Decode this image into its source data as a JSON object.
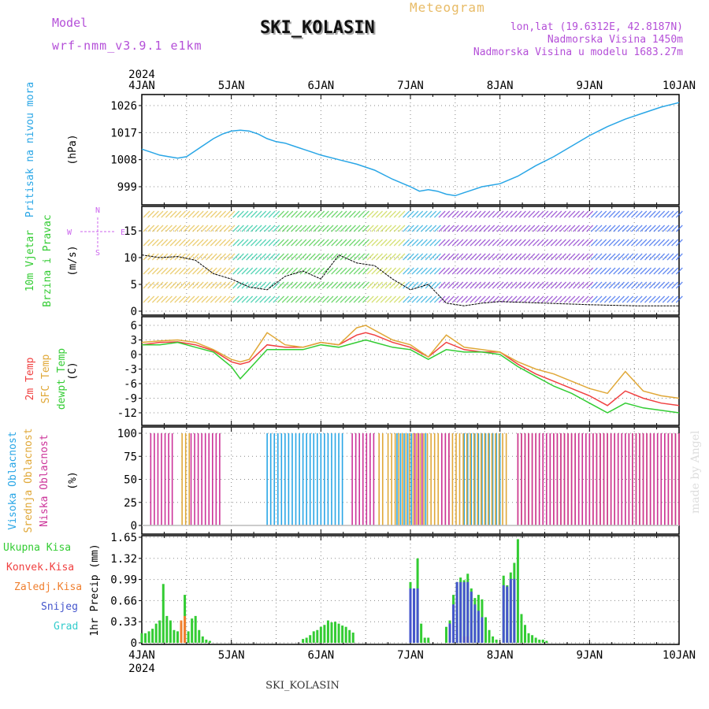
{
  "header": {
    "model_label": "Model",
    "model_value": "wrf-nmm_v3.9.1 e1km",
    "title": "SKI_KOLASIN",
    "meteogram": "Meteogram",
    "lonlat": "lon,lat (19.6312E, 42.8187N)",
    "elev": "Nadmorska Visina 1450m",
    "elev_model": "Nadmorska Visina u modelu 1683.27m",
    "bottom_title": "SKI_KOLASIN",
    "credit": "made by Angel"
  },
  "colors": {
    "pressure": "#29a6e6",
    "t2m": "#f04040",
    "sfc": "#e0a838",
    "dew": "#33cc33",
    "high": "#29a6e6",
    "mid": "#e0a838",
    "low": "#cc3399",
    "total": "#33cc33",
    "conv": "#f04040",
    "frz": "#f08030",
    "snow": "#4455cc",
    "grad": "#33cccc",
    "wind_dir": "#cc66ee"
  },
  "chart_data": [
    {
      "type": "line",
      "panel": "pressure",
      "ylabel_lines": [
        "Pritisak na nivou mora"
      ],
      "unit": "(hPa)",
      "x_labels": [
        "4JAN",
        "5JAN",
        "6JAN",
        "7JAN",
        "8JAN",
        "9JAN",
        "10JAN"
      ],
      "year": "2024",
      "yticks": [
        999,
        1008,
        1017,
        1026
      ],
      "ylim": [
        993.5,
        1029.5
      ],
      "series": [
        {
          "color_key": "pressure",
          "x": [
            0,
            0.1,
            0.2,
            0.3,
            0.4,
            0.5,
            0.6,
            0.7,
            0.8,
            0.9,
            1.0,
            1.1,
            1.2,
            1.3,
            1.4,
            1.5,
            1.6,
            1.7,
            1.8,
            1.9,
            2.0,
            2.2,
            2.4,
            2.6,
            2.8,
            3.0,
            3.1,
            3.2,
            3.3,
            3.4,
            3.5,
            3.6,
            3.7,
            3.8,
            3.9,
            4.0,
            4.2,
            4.4,
            4.6,
            4.8,
            5.0,
            5.2,
            5.4,
            5.6,
            5.8,
            6.0
          ],
          "values": [
            1011.5,
            1010.5,
            1009.5,
            1009.0,
            1008.5,
            1009.0,
            1011.0,
            1013.0,
            1015.0,
            1016.5,
            1017.5,
            1017.8,
            1017.5,
            1016.5,
            1015.0,
            1014.0,
            1013.5,
            1012.5,
            1011.5,
            1010.5,
            1009.5,
            1008.0,
            1006.5,
            1004.5,
            1001.5,
            999.0,
            997.5,
            998.0,
            997.5,
            996.5,
            996.0,
            997.0,
            998.0,
            999.0,
            999.5,
            1000.0,
            1002.5,
            1006.0,
            1009.0,
            1012.5,
            1016.0,
            1019.0,
            1021.5,
            1023.5,
            1025.5,
            1027.0
          ]
        }
      ]
    },
    {
      "type": "line",
      "panel": "wind",
      "ylabel_lines": [
        "10m Vjetar",
        "Brzina i Pravac"
      ],
      "unit": "(m/s)",
      "yticks": [
        0,
        5,
        10,
        15
      ],
      "ylim": [
        -0.5,
        20
      ],
      "compass": [
        "N",
        "W",
        "E",
        "S"
      ],
      "series": [
        {
          "name": "Brzina",
          "color": "#000000",
          "x": [
            0,
            0.2,
            0.4,
            0.6,
            0.8,
            1.0,
            1.2,
            1.4,
            1.6,
            1.8,
            2.0,
            2.2,
            2.4,
            2.6,
            2.8,
            3.0,
            3.2,
            3.4,
            3.6,
            3.8,
            4.0,
            4.5,
            5.0,
            5.5,
            6.0
          ],
          "values": [
            10.5,
            10,
            10.2,
            9.5,
            7,
            6,
            4.5,
            4,
            6.5,
            7.5,
            6,
            10.5,
            9,
            8.5,
            6,
            4,
            5,
            1.5,
            1,
            1.5,
            1.8,
            1.5,
            1.2,
            1.0,
            1.0
          ]
        }
      ]
    },
    {
      "type": "line",
      "panel": "temperature",
      "ylabel_lines": [
        "2m Temp",
        "SFC Temp",
        "dewpt Temp"
      ],
      "unit": "(C)",
      "yticks": [
        -12,
        -9,
        -6,
        -3,
        0,
        3,
        6
      ],
      "ylim": [
        -13.5,
        7.5
      ],
      "series": [
        {
          "name": "2m Temp",
          "color_key": "t2m",
          "x": [
            0,
            0.2,
            0.4,
            0.6,
            0.8,
            1.0,
            1.1,
            1.2,
            1.4,
            1.6,
            1.8,
            2.0,
            2.2,
            2.4,
            2.5,
            2.6,
            2.8,
            3.0,
            3.2,
            3.4,
            3.6,
            3.8,
            4.0,
            4.2,
            4.4,
            4.6,
            4.8,
            5.0,
            5.2,
            5.4,
            5.6,
            5.8,
            6.0
          ],
          "values": [
            2,
            2.5,
            2.6,
            2,
            0.8,
            -1.5,
            -2,
            -1.5,
            2,
            1.5,
            1.5,
            2.5,
            2,
            4,
            4.5,
            4,
            2.5,
            1.5,
            -0.5,
            2.5,
            1,
            0.5,
            0.5,
            -2,
            -4,
            -5.5,
            -7,
            -8.5,
            -10.5,
            -7.5,
            -9,
            -10,
            -10.5
          ]
        },
        {
          "name": "SFC Temp",
          "color_key": "sfc",
          "x": [
            0,
            0.2,
            0.4,
            0.6,
            0.8,
            1.0,
            1.1,
            1.2,
            1.4,
            1.6,
            1.8,
            2.0,
            2.2,
            2.4,
            2.5,
            2.6,
            2.8,
            3.0,
            3.2,
            3.4,
            3.6,
            3.8,
            4.0,
            4.2,
            4.4,
            4.6,
            4.8,
            5.0,
            5.2,
            5.4,
            5.6,
            5.8,
            6.0
          ],
          "values": [
            2.5,
            2.8,
            3,
            2.5,
            1,
            -1,
            -1.5,
            -1.0,
            4.5,
            2,
            1.5,
            2.5,
            2,
            5.5,
            6,
            5,
            3,
            2,
            -0.5,
            4,
            1.5,
            1,
            0.5,
            -1.5,
            -3,
            -4,
            -5.5,
            -7,
            -8,
            -3.5,
            -7.5,
            -8.5,
            -9
          ]
        },
        {
          "name": "dewpt Temp",
          "color_key": "dew",
          "x": [
            0,
            0.2,
            0.4,
            0.6,
            0.8,
            1.0,
            1.1,
            1.2,
            1.4,
            1.6,
            1.8,
            2.0,
            2.2,
            2.4,
            2.5,
            2.6,
            2.8,
            3.0,
            3.2,
            3.4,
            3.6,
            3.8,
            4.0,
            4.2,
            4.4,
            4.6,
            4.8,
            5.0,
            5.2,
            5.4,
            5.6,
            5.8,
            6.0
          ],
          "values": [
            2,
            2,
            2.5,
            1.5,
            0.5,
            -2.5,
            -5,
            -3,
            1,
            1,
            1,
            2,
            1.5,
            2.5,
            3,
            2.5,
            1.5,
            1,
            -1,
            1,
            0.5,
            0.5,
            0,
            -2.5,
            -4.5,
            -6.5,
            -8,
            -10,
            -12,
            -10,
            -11,
            -11.5,
            -12
          ]
        }
      ]
    },
    {
      "type": "bar",
      "panel": "cloud",
      "ylabel_lines": [
        "Visoka Oblacnost",
        "Srednja Oblacnost",
        "Niska Oblacnost"
      ],
      "unit": "(%)",
      "yticks": [
        0,
        25,
        50,
        75,
        100
      ],
      "ylim": [
        0,
        100
      ],
      "series": [
        {
          "name": "Visoka Oblacnost",
          "color_key": "high",
          "x_ranges": [
            [
              1.4,
              2.25
            ],
            [
              2.85,
              3.2
            ],
            [
              3.6,
              4.0
            ]
          ],
          "value": 100
        },
        {
          "name": "Srednja Oblacnost",
          "color_key": "mid",
          "x_ranges": [
            [
              0.45,
              0.55
            ],
            [
              2.65,
              2.7
            ],
            [
              2.75,
              4.1
            ],
            [
              4.2,
              6.0
            ]
          ],
          "value": 100
        },
        {
          "name": "Niska Oblacnost",
          "color_key": "low",
          "x_ranges": [
            [
              0.1,
              0.35
            ],
            [
              0.55,
              0.9
            ],
            [
              2.35,
              2.6
            ],
            [
              3.05,
              3.15
            ],
            [
              3.35,
              3.45
            ],
            [
              4.2,
              6.0
            ]
          ],
          "value": 100
        }
      ]
    },
    {
      "type": "bar",
      "panel": "precip",
      "ylabel_lines": [
        "Ukupna Kisa",
        "Konvek.Kisa",
        "Zaledj.Kisa",
        "Snijeg",
        "Grad"
      ],
      "unit": "1hr Precip (mm)",
      "yticks": [
        0,
        0.33,
        0.66,
        0.99,
        1.32,
        1.65
      ],
      "ylim": [
        0,
        1.65
      ],
      "x_labels": [
        "4JAN",
        "5JAN",
        "6JAN",
        "7JAN",
        "8JAN",
        "9JAN",
        "10JAN"
      ],
      "year": "2024",
      "series": [
        {
          "name": "Ukupna Kisa",
          "color_key": "total",
          "x": [
            0.0,
            0.04,
            0.08,
            0.12,
            0.16,
            0.2,
            0.24,
            0.28,
            0.32,
            0.36,
            0.4,
            0.44,
            0.48,
            0.52,
            0.56,
            0.6,
            0.64,
            0.68,
            0.72,
            0.76,
            1.8,
            1.84,
            1.88,
            1.92,
            1.96,
            2.0,
            2.04,
            2.08,
            2.12,
            2.16,
            2.2,
            2.24,
            2.28,
            2.32,
            2.36,
            3.0,
            3.04,
            3.08,
            3.12,
            3.16,
            3.2,
            3.4,
            3.44,
            3.48,
            3.52,
            3.56,
            3.6,
            3.64,
            3.68,
            3.72,
            3.76,
            3.8,
            3.84,
            3.88,
            3.92,
            3.96,
            4.04,
            4.08,
            4.12,
            4.16,
            4.2,
            4.24,
            4.28,
            4.32,
            4.36,
            4.4,
            4.44,
            4.48,
            4.52
          ],
          "values": [
            0.15,
            0.15,
            0.18,
            0.22,
            0.3,
            0.35,
            0.92,
            0.42,
            0.35,
            0.2,
            0.18,
            0.28,
            0.75,
            0.18,
            0.38,
            0.42,
            0.2,
            0.1,
            0.05,
            0.03,
            0.06,
            0.08,
            0.12,
            0.18,
            0.2,
            0.25,
            0.28,
            0.35,
            0.32,
            0.33,
            0.3,
            0.27,
            0.25,
            0.2,
            0.16,
            0.95,
            0.85,
            1.32,
            0.3,
            0.08,
            0.08,
            0.25,
            0.35,
            0.75,
            0.95,
            1.02,
            0.98,
            1.08,
            0.85,
            0.7,
            0.75,
            0.68,
            0.4,
            0.2,
            0.1,
            0.05,
            1.05,
            0.9,
            1.1,
            1.25,
            1.62,
            0.45,
            0.28,
            0.15,
            0.12,
            0.08,
            0.05,
            0.05,
            0.03
          ]
        },
        {
          "name": "Konvek.Kisa",
          "color_key": "conv",
          "x": [
            0.44,
            0.48,
            3.6,
            3.64
          ],
          "values": [
            0.3,
            0.35,
            0.1,
            0.1
          ]
        },
        {
          "name": "Zaledj.Kisa",
          "color_key": "frz",
          "x": [
            0.44,
            0.48
          ],
          "values": [
            0.35,
            0.42
          ]
        },
        {
          "name": "Snijeg",
          "color_key": "snow",
          "x": [
            3.0,
            3.04,
            3.08,
            3.44,
            3.48,
            3.52,
            3.56,
            3.6,
            3.64,
            3.68,
            3.72,
            3.76,
            3.8,
            4.04,
            4.08,
            4.12,
            4.16
          ],
          "values": [
            0.85,
            0.85,
            0.85,
            0.3,
            0.6,
            0.95,
            0.95,
            0.95,
            0.95,
            0.8,
            0.6,
            0.5,
            0.4,
            0.9,
            0.88,
            1.0,
            1.0
          ]
        },
        {
          "name": "Grad",
          "color_key": "grad",
          "x": [],
          "values": []
        }
      ]
    }
  ]
}
